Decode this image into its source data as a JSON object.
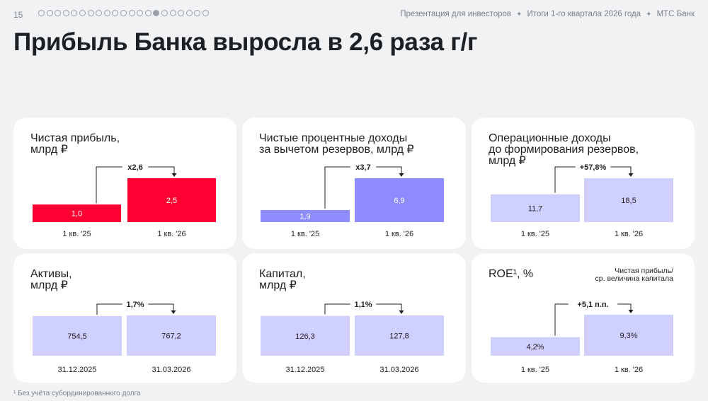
{
  "header": {
    "page_number": "15",
    "breadcrumbs": [
      "Презентация для инвесторов",
      "Итоги 1-го квартала 2026 года",
      "МТС Банк"
    ],
    "separator": "✦"
  },
  "pager": {
    "total": 21,
    "active_index": 14
  },
  "title": "Прибыль Банка выросла в 2,6 раза г/г",
  "colors": {
    "red": "#ff0032",
    "violet": "#8f8cff",
    "lavender": "#cfd0ff",
    "text": "#1d2023"
  },
  "chart_data": [
    {
      "id": "net_profit",
      "type": "bar",
      "title_lines": [
        "Чистая прибыль,",
        "млрд ₽"
      ],
      "subtitle_lines": [],
      "categories": [
        "1 кв. '25",
        "1 кв. '26"
      ],
      "values": [
        1.0,
        2.5
      ],
      "value_labels": [
        "1,0",
        "2,5"
      ],
      "change_label": "x2,6",
      "ylim": [
        0,
        2.5
      ],
      "color": "#ff0032",
      "label_color": "#ffffff"
    },
    {
      "id": "nii",
      "type": "bar",
      "title_lines": [
        "Чистые процентные доходы",
        "за вычетом резервов, млрд ₽"
      ],
      "subtitle_lines": [],
      "categories": [
        "1 кв. '25",
        "1 кв. '26"
      ],
      "values": [
        1.9,
        6.9
      ],
      "value_labels": [
        "1,9",
        "6,9"
      ],
      "change_label": "x3,7",
      "ylim": [
        0,
        6.9
      ],
      "color": "#8f8cff",
      "label_color": "#ffffff"
    },
    {
      "id": "op_income",
      "type": "bar",
      "title_lines": [
        "Операционные доходы",
        "до формирования резервов,",
        "млрд ₽"
      ],
      "subtitle_lines": [],
      "categories": [
        "1 кв. '25",
        "1 кв. '26"
      ],
      "values": [
        11.7,
        18.5
      ],
      "value_labels": [
        "11,7",
        "18,5"
      ],
      "change_label": "+57,8%",
      "ylim": [
        0,
        18.5
      ],
      "color": "#cfd0ff",
      "label_color": "#1d2023"
    },
    {
      "id": "assets",
      "type": "bar",
      "title_lines": [
        "Активы,",
        "млрд ₽"
      ],
      "subtitle_lines": [],
      "categories": [
        "31.12.2025",
        "31.03.2026"
      ],
      "values": [
        754.5,
        767.2
      ],
      "value_labels": [
        "754,5",
        "767,2"
      ],
      "change_label": "1,7%",
      "ylim": [
        0,
        767.2
      ],
      "color": "#cfd0ff",
      "label_color": "#1d2023"
    },
    {
      "id": "capital",
      "type": "bar",
      "title_lines": [
        "Капитал,",
        "млрд ₽"
      ],
      "subtitle_lines": [],
      "categories": [
        "31.12.2025",
        "31.03.2026"
      ],
      "values": [
        126.3,
        127.8
      ],
      "value_labels": [
        "126,3",
        "127,8"
      ],
      "change_label": "1,1%",
      "ylim": [
        0,
        127.8
      ],
      "color": "#cfd0ff",
      "label_color": "#1d2023"
    },
    {
      "id": "roe",
      "type": "bar",
      "title_lines": [
        "ROE¹, %"
      ],
      "subtitle_lines": [
        "Чистая прибыль/",
        "ср. величина капитала"
      ],
      "categories": [
        "1 кв. '25",
        "1 кв. '26"
      ],
      "values": [
        4.2,
        9.3
      ],
      "value_labels": [
        "4,2%",
        "9,3%"
      ],
      "change_label": "+5,1 п.п.",
      "ylim": [
        0,
        9.3
      ],
      "color": "#cfd0ff",
      "label_color": "#1d2023"
    }
  ],
  "footnote": "¹ Без учёта субординированного долга"
}
